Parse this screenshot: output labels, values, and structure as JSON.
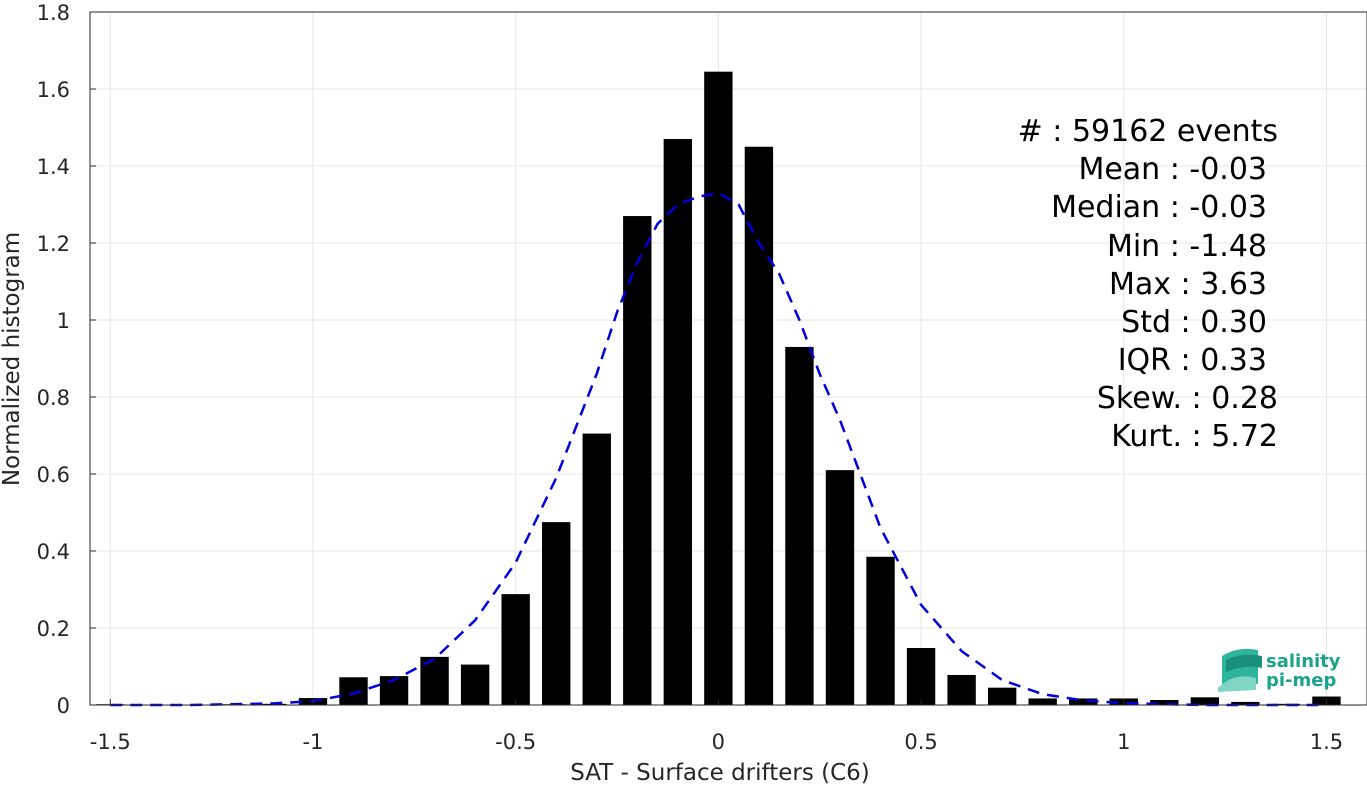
{
  "chart_data": {
    "type": "bar",
    "title": "",
    "xlabel": "SAT - Surface drifters (C6)",
    "ylabel": "Normalized histogram",
    "xlim": [
      -1.55,
      1.6
    ],
    "ylim": [
      0,
      1.8
    ],
    "grid": true,
    "xticks": [
      -1.5,
      -1,
      -0.5,
      0,
      0.5,
      1,
      1.5
    ],
    "xtick_labels": [
      "-1.5",
      "-1",
      "-0.5",
      "0",
      "0.5",
      "1",
      "1.5"
    ],
    "yticks": [
      0,
      0.2,
      0.4,
      0.6,
      0.8,
      1,
      1.2,
      1.4,
      1.6,
      1.8
    ],
    "ytick_labels": [
      "0",
      "0.2",
      "0.4",
      "0.6",
      "0.8",
      "1",
      "1.2",
      "1.4",
      "1.6",
      "1.8"
    ],
    "bar_width": 0.07,
    "x": [
      -1.5,
      -1.4,
      -1.3,
      -1.2,
      -1.1,
      -1.0,
      -0.9,
      -0.8,
      -0.7,
      -0.6,
      -0.5,
      -0.4,
      -0.3,
      -0.2,
      -0.1,
      0.0,
      0.1,
      0.2,
      0.3,
      0.4,
      0.5,
      0.6,
      0.7,
      0.8,
      0.9,
      1.0,
      1.1,
      1.2,
      1.3,
      1.4,
      1.5
    ],
    "values": [
      0.002,
      0.001,
      0.001,
      0.002,
      0.003,
      0.018,
      0.072,
      0.075,
      0.125,
      0.105,
      0.288,
      0.475,
      0.705,
      1.27,
      1.47,
      1.645,
      1.45,
      0.93,
      0.61,
      0.385,
      0.148,
      0.078,
      0.045,
      0.017,
      0.017,
      0.017,
      0.013,
      0.02,
      0.008,
      0.003,
      0.022
    ],
    "bar_color": "#000000",
    "fit": {
      "style": "dashed",
      "color": "#0000dd",
      "x": [
        -1.5,
        -1.4,
        -1.3,
        -1.2,
        -1.1,
        -1.0,
        -0.9,
        -0.8,
        -0.7,
        -0.6,
        -0.5,
        -0.4,
        -0.3,
        -0.25,
        -0.2,
        -0.15,
        -0.1,
        -0.05,
        0.0,
        0.05,
        0.1,
        0.15,
        0.2,
        0.25,
        0.3,
        0.4,
        0.5,
        0.6,
        0.7,
        0.8,
        0.9,
        1.0,
        1.1,
        1.2,
        1.3,
        1.4,
        1.5
      ],
      "y": [
        0.0,
        0.0,
        0.0,
        0.002,
        0.004,
        0.01,
        0.03,
        0.065,
        0.12,
        0.22,
        0.37,
        0.59,
        0.86,
        1.02,
        1.15,
        1.25,
        1.3,
        1.32,
        1.33,
        1.3,
        1.2,
        1.12,
        1.0,
        0.86,
        0.74,
        0.46,
        0.26,
        0.14,
        0.065,
        0.028,
        0.012,
        0.005,
        0.002,
        0.0,
        0.0,
        0.0,
        0.0
      ]
    }
  },
  "stats": [
    {
      "label": "#  : 59162 events"
    },
    {
      "label": "Mean : -0.03"
    },
    {
      "label": "Median : -0.03"
    },
    {
      "label": "Min : -1.48"
    },
    {
      "label": "Max : 3.63"
    },
    {
      "label": "Std : 0.30"
    },
    {
      "label": "IQR : 0.33"
    },
    {
      "label": "Skew. : 0.28"
    },
    {
      "label": "Kurt. : 5.72"
    }
  ],
  "logo": {
    "line1": "salinity",
    "line2": "pi-mep"
  }
}
